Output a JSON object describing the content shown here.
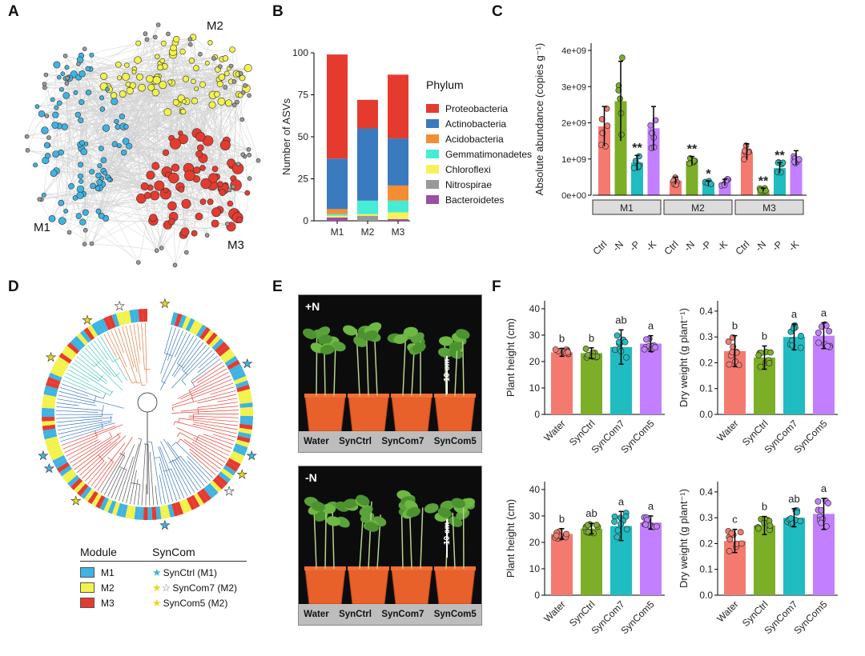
{
  "panel_letters": {
    "a": "A",
    "b": "B",
    "c": "C",
    "d": "D",
    "e": "E",
    "f": "F"
  },
  "panelA": {
    "m1": "M1",
    "m2": "M2",
    "m3": "M3",
    "colors": {
      "m1": "#3fb3e2",
      "m2": "#f3f24d",
      "m3": "#e53b2f",
      "other": "#9a9a9a",
      "edge": "#c9c9c9"
    }
  },
  "panelB": {
    "legend_title": "Phylum",
    "phyla": [
      {
        "name": "Proteobacteria",
        "color": "#e53b2f"
      },
      {
        "name": "Actinobacteria",
        "color": "#3a7abf"
      },
      {
        "name": "Acidobacteria",
        "color": "#f58d33"
      },
      {
        "name": "Gemmatimonadetes",
        "color": "#45ecd6"
      },
      {
        "name": "Chloroflexi",
        "color": "#f7f25a"
      },
      {
        "name": "Nitrospirae",
        "color": "#999999"
      },
      {
        "name": "Bacteroidetes",
        "color": "#9b4fa5"
      }
    ]
  },
  "panelC": {
    "strip": [
      "M1",
      "M2",
      "M3"
    ],
    "treatments": [
      "Ctrl",
      "-N",
      "-P",
      "-K"
    ]
  },
  "panelD": {
    "module_title": "Module",
    "modules": [
      {
        "label": "M1",
        "color": "#3fb3e2"
      },
      {
        "label": "M2",
        "color": "#f3f24d"
      },
      {
        "label": "M3",
        "color": "#e53b2f"
      }
    ],
    "syncom_title": "SynCom",
    "syncom_items": [
      "SynCtrl (M1)",
      "SynCom7 (M2)",
      "SynCom5 (M2)"
    ]
  },
  "panelE": {
    "top": {
      "label": "+N",
      "scale": "10 cm"
    },
    "bottom": {
      "label": "-N",
      "scale": "10 cm"
    },
    "pots": [
      "Water",
      "SynCtrl",
      "SynCom7",
      "SynCom5"
    ]
  },
  "panelF": {
    "groups": [
      "Water",
      "SynCtrl",
      "SynCom7",
      "SynCom5"
    ],
    "colors": [
      "#f47a70",
      "#7cae28",
      "#1fbcc1",
      "#c27fff"
    ]
  },
  "chart_data": [
    {
      "type": "bar",
      "panel": "B",
      "categories": [
        "M1",
        "M2",
        "M3"
      ],
      "series": [
        {
          "name": "Bacteroidetes",
          "values": [
            2,
            0,
            1
          ]
        },
        {
          "name": "Nitrospirae",
          "values": [
            0,
            3,
            0
          ]
        },
        {
          "name": "Chloroflexi",
          "values": [
            1,
            1,
            4
          ]
        },
        {
          "name": "Gemmatimonadetes",
          "values": [
            1,
            8,
            7
          ]
        },
        {
          "name": "Acidobacteria",
          "values": [
            3,
            0,
            9
          ]
        },
        {
          "name": "Actinobacteria",
          "values": [
            30,
            43,
            28
          ]
        },
        {
          "name": "Proteobacteria",
          "values": [
            62,
            17,
            38
          ]
        }
      ],
      "ylabel": "Number of ASVs",
      "ylim": [
        0,
        100
      ],
      "yticks": [
        0,
        25,
        50,
        75,
        100
      ],
      "legend": "right"
    },
    {
      "type": "bar",
      "panel": "C",
      "ylabel": "Absolute abundance (copies g⁻¹)",
      "ylim": [
        0,
        4200000000.0
      ],
      "yticks": [
        "0e+00",
        "1e+09",
        "2e+09",
        "3e+09",
        "4e+09"
      ],
      "facets": [
        "M1",
        "M2",
        "M3"
      ],
      "categories": [
        "Ctrl",
        "-N",
        "-P",
        "-K"
      ],
      "means": [
        [
          1900000000.0,
          2600000000.0,
          900000000.0,
          1850000000.0
        ],
        [
          400000000.0,
          950000000.0,
          330000000.0,
          350000000.0
        ],
        [
          1200000000.0,
          150000000.0,
          750000000.0,
          1030000000.0
        ]
      ],
      "errors": [
        [
          550000000.0,
          1100000000.0,
          200000000.0,
          600000000.0
        ],
        [
          100000000.0,
          120000000.0,
          60000000.0,
          90000000.0
        ],
        [
          220000000.0,
          40000000.0,
          150000000.0,
          200000000.0
        ]
      ],
      "significance": [
        [
          "",
          "",
          "**",
          ""
        ],
        [
          "",
          "**",
          "*",
          ""
        ],
        [
          "",
          "**",
          "**",
          ""
        ]
      ]
    },
    {
      "type": "bar",
      "panel": "F1",
      "ylabel": "Plant height (cm)",
      "ylim": [
        0,
        43
      ],
      "yticks": [
        0,
        10,
        20,
        30,
        40
      ],
      "categories": [
        "Water",
        "SynCtrl",
        "SynCom7",
        "SynCom5"
      ],
      "values": [
        23.5,
        23.2,
        25.5,
        26.8
      ],
      "errors": [
        1.5,
        2,
        6.5,
        3
      ],
      "letters": [
        "b",
        "b",
        "ab",
        "a"
      ]
    },
    {
      "type": "bar",
      "panel": "F2",
      "ylabel": "Dry weight (g plant⁻¹)",
      "ylim": [
        0,
        0.44
      ],
      "yticks": [
        "0.0",
        "0.1",
        "0.2",
        "0.3",
        "0.4"
      ],
      "categories": [
        "Water",
        "SynCtrl",
        "SynCom7",
        "SynCom5"
      ],
      "values": [
        0.245,
        0.22,
        0.3,
        0.305
      ],
      "errors": [
        0.06,
        0.045,
        0.05,
        0.05
      ],
      "letters": [
        "b",
        "b",
        "a",
        "a"
      ]
    },
    {
      "type": "bar",
      "panel": "F3",
      "ylabel": "Plant height (cm)",
      "ylim": [
        0,
        43
      ],
      "yticks": [
        0,
        10,
        20,
        30,
        40
      ],
      "categories": [
        "Water",
        "SynCtrl",
        "SynCom7",
        "SynCom5"
      ],
      "values": [
        23.2,
        25.2,
        26.2,
        27.5
      ],
      "errors": [
        2,
        2,
        5.5,
        2.5
      ],
      "letters": [
        "b",
        "ab",
        "a",
        "a"
      ]
    },
    {
      "type": "bar",
      "panel": "F4",
      "ylabel": "Dry weight (g plant⁻¹)",
      "ylim": [
        0,
        0.44
      ],
      "yticks": [
        "0.0",
        "0.1",
        "0.2",
        "0.3",
        "0.4"
      ],
      "categories": [
        "Water",
        "SynCtrl",
        "SynCom7",
        "SynCom5"
      ],
      "values": [
        0.21,
        0.27,
        0.3,
        0.315
      ],
      "errors": [
        0.045,
        0.035,
        0.035,
        0.06
      ],
      "letters": [
        "c",
        "b",
        "ab",
        "a"
      ]
    }
  ]
}
